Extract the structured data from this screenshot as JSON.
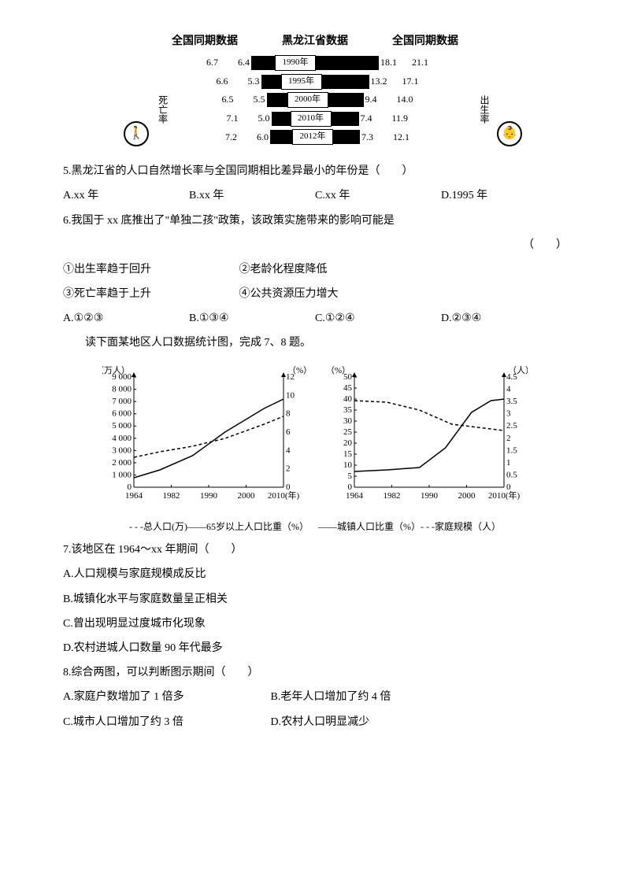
{
  "barChart": {
    "headerLeft": "全国同期数据",
    "headerMid": "黑龙江省数据",
    "headerRight": "全国同期数据",
    "labelLeft": "死亡率",
    "labelRight": "出生率",
    "iconLeft": "🚶",
    "iconRight": "👶",
    "rows": [
      {
        "n1": "6.7",
        "n2": "6.4",
        "year": "1990年",
        "n3": "18.1",
        "n4": "21.1",
        "bl": 30,
        "br": 80
      },
      {
        "n1": "6.6",
        "n2": "5.3",
        "year": "1995年",
        "n3": "13.2",
        "n4": "17.1",
        "bl": 25,
        "br": 60
      },
      {
        "n1": "6.5",
        "n2": "5.5",
        "year": "2000年",
        "n3": "9.4",
        "n4": "14.0",
        "bl": 26,
        "br": 45
      },
      {
        "n1": "7.1",
        "n2": "5.0",
        "year": "2010年",
        "n3": "7.4",
        "n4": "11.9",
        "bl": 24,
        "br": 35
      },
      {
        "n1": "7.2",
        "n2": "6.0",
        "year": "2012年",
        "n3": "7.3",
        "n4": "12.1",
        "bl": 28,
        "br": 34
      }
    ]
  },
  "q5": {
    "text": "5.黑龙江省的人口自然增长率与全国同期相比差异最小的年份是（　　）",
    "a": "A.xx 年",
    "b": "B.xx 年",
    "c": "C.xx 年",
    "d": "D.1995 年"
  },
  "q6": {
    "text": "6.我国于 xx 底推出了\"单独二孩\"政策，该政策实施带来的影响可能是",
    "blank": "（　　）",
    "s1": "①出生率趋于回升",
    "s2": "②老龄化程度降低",
    "s3": "③死亡率趋于上升",
    "s4": "④公共资源压力增大",
    "a": "A.①②③",
    "b": "B.①③④",
    "c": "C.①②④",
    "d": "D.②③④"
  },
  "intro78": "读下面某地区人口数据统计图，完成 7、8 题。",
  "chart1": {
    "yLeftLabel": "（万人）",
    "yRightLabel": "（%）",
    "yLeftTicks": [
      "9 000",
      "8 000",
      "7 000",
      "6 000",
      "5 000",
      "4 000",
      "3 000",
      "2 000",
      "1 000",
      "0"
    ],
    "yRightTicks": [
      "12",
      "10",
      "8",
      "6",
      "4",
      "2",
      "0"
    ],
    "xTicks": [
      "1964",
      "1982",
      "1990",
      "2000",
      "2010(年)"
    ],
    "solid": [
      [
        0,
        128
      ],
      [
        40,
        118
      ],
      [
        90,
        100
      ],
      [
        140,
        70
      ],
      [
        200,
        40
      ],
      [
        230,
        28
      ]
    ],
    "dashed": [
      [
        0,
        102
      ],
      [
        40,
        95
      ],
      [
        90,
        88
      ],
      [
        140,
        78
      ],
      [
        200,
        60
      ],
      [
        230,
        50
      ]
    ],
    "legend": "- - -总人口(万)——65岁以上人口比重（%）"
  },
  "chart2": {
    "yLeftLabel": "（%）",
    "yRightLabel": "（人）",
    "yLeftTicks": [
      "50",
      "45",
      "40",
      "35",
      "30",
      "25",
      "20",
      "15",
      "10",
      "5",
      "0"
    ],
    "yRightTicks": [
      "4.5",
      "4",
      "3.5",
      "3",
      "2.5",
      "2",
      "1.5",
      "1",
      "0.5",
      "0"
    ],
    "xTicks": [
      "1964",
      "1982",
      "1990",
      "2000",
      "2010(年)"
    ],
    "solid": [
      [
        0,
        120
      ],
      [
        50,
        118
      ],
      [
        100,
        115
      ],
      [
        140,
        90
      ],
      [
        180,
        45
      ],
      [
        210,
        30
      ],
      [
        230,
        28
      ]
    ],
    "dashed": [
      [
        0,
        30
      ],
      [
        50,
        32
      ],
      [
        100,
        42
      ],
      [
        150,
        60
      ],
      [
        200,
        65
      ],
      [
        230,
        68
      ]
    ],
    "legend": "——城镇人口比重（%）- - -家庭规模（人）"
  },
  "q7": {
    "text": "7.该地区在 1964～xx 年期间（　　）",
    "a": "A.人口规模与家庭规模成反比",
    "b": "B.城镇化水平与家庭数量呈正相关",
    "c": "C.曾出现明显过度城市化现象",
    "d": "D.农村进城人口数量 90 年代最多"
  },
  "q8": {
    "text": "8.综合两图，可以判断图示期间（　　）",
    "a": "A.家庭户数增加了 1 倍多",
    "b": "B.老年人口增加了约 4 倍",
    "c": "C.城市人口增加了约 3 倍",
    "d": "D.农村人口明显减少"
  }
}
